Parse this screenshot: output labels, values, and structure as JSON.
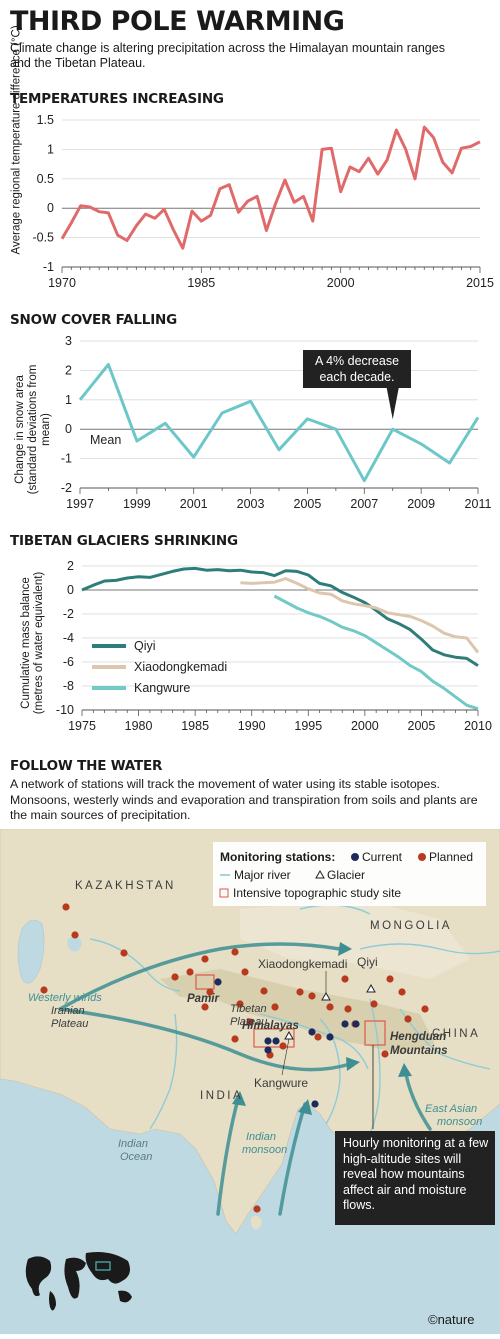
{
  "title": "THIRD POLE WARMING",
  "subtitle": "Climate change is altering precipitation across the Himalayan mountain ranges and the Tibetan Plateau.",
  "chart_data": [
    {
      "type": "line",
      "title": "TEMPERATURES INCREASING",
      "ylabel": "Average regional temperature difference (°C)",
      "ylim": [
        -1,
        1.5
      ],
      "yticks": [
        "1.5",
        "1",
        "0.5",
        "0",
        "-0.5",
        "-1"
      ],
      "xlim": [
        1970,
        2015
      ],
      "xticks": [
        "1970",
        "1985",
        "2000",
        "2015"
      ],
      "series": [
        {
          "color": "#e06a6a",
          "x": [
            1970,
            1971,
            1972,
            1973,
            1974,
            1975,
            1976,
            1977,
            1978,
            1979,
            1980,
            1981,
            1982,
            1983,
            1984,
            1985,
            1986,
            1987,
            1988,
            1989,
            1990,
            1991,
            1992,
            1993,
            1994,
            1995,
            1996,
            1997,
            1998,
            1999,
            2000,
            2001,
            2002,
            2003,
            2004,
            2005,
            2006,
            2007,
            2008,
            2009,
            2010,
            2011,
            2012,
            2013,
            2014,
            2015
          ],
          "values": [
            -0.52,
            -0.25,
            0.04,
            0.02,
            -0.06,
            -0.08,
            -0.46,
            -0.55,
            -0.3,
            -0.1,
            -0.17,
            -0.02,
            -0.37,
            -0.68,
            -0.05,
            -0.22,
            -0.12,
            0.33,
            0.4,
            -0.07,
            0.12,
            0.2,
            -0.38,
            0.08,
            0.48,
            0.1,
            0.2,
            -0.22,
            1.0,
            1.02,
            0.28,
            0.7,
            0.62,
            0.85,
            0.58,
            0.82,
            1.33,
            1.0,
            0.5,
            1.38,
            1.2,
            0.78,
            0.6,
            1.02,
            1.05,
            1.13
          ]
        }
      ]
    },
    {
      "type": "line",
      "title": "SNOW COVER FALLING",
      "ylabel": "Change in snow area (standard deviations from mean)",
      "ylim": [
        -2,
        3
      ],
      "yticks": [
        "3",
        "2",
        "1",
        "0",
        "-1",
        "-2"
      ],
      "xlim": [
        1997,
        2011
      ],
      "xticks": [
        "1997",
        "1999",
        "2001",
        "2003",
        "2005",
        "2007",
        "2009",
        "2011"
      ],
      "mean_label": "Mean",
      "annotation": "A 4% decrease each decade.",
      "series": [
        {
          "color": "#6cc7c9",
          "x": [
            1997,
            1998,
            1999,
            2000,
            2001,
            2002,
            2003,
            2004,
            2005,
            2006,
            2007,
            2008,
            2009,
            2010,
            2011
          ],
          "values": [
            1.0,
            2.2,
            -0.4,
            0.2,
            -0.95,
            0.55,
            0.95,
            -0.7,
            0.35,
            0.0,
            -1.75,
            0.0,
            -0.5,
            -1.15,
            0.4
          ]
        }
      ]
    },
    {
      "type": "line",
      "title": "TIBETAN GLACIERS SHRINKING",
      "ylabel": "Cumulative mass balance (metres of water equivalent)",
      "ylim": [
        -10,
        2
      ],
      "yticks": [
        "2",
        "0",
        "-2",
        "-4",
        "-6",
        "-8",
        "-10"
      ],
      "xlim": [
        1975,
        2010
      ],
      "xticks": [
        "1975",
        "1980",
        "1985",
        "1990",
        "1995",
        "2000",
        "2005",
        "2010"
      ],
      "legend_position": "bottom-left",
      "series": [
        {
          "name": "Qiyi",
          "color": "#2e7d7b",
          "x": [
            1975,
            1976,
            1977,
            1978,
            1979,
            1980,
            1981,
            1982,
            1983,
            1984,
            1985,
            1986,
            1987,
            1988,
            1989,
            1990,
            1991,
            1992,
            1993,
            1994,
            1995,
            1996,
            1997,
            1998,
            1999,
            2000,
            2001,
            2002,
            2003,
            2004,
            2005,
            2006,
            2007,
            2008,
            2009,
            2010
          ],
          "values": [
            0.0,
            0.4,
            0.75,
            0.8,
            1.0,
            1.1,
            1.05,
            1.3,
            1.55,
            1.75,
            1.8,
            1.65,
            1.7,
            1.6,
            1.65,
            1.5,
            1.45,
            1.2,
            1.6,
            1.55,
            1.25,
            0.55,
            0.35,
            -0.2,
            -0.6,
            -1.05,
            -1.7,
            -2.4,
            -2.8,
            -3.3,
            -4.1,
            -5.0,
            -5.4,
            -5.6,
            -5.7,
            -6.3
          ]
        },
        {
          "name": "Xiaodongkemadi",
          "color": "#dcc6ad",
          "x": [
            1989,
            1990,
            1991,
            1992,
            1993,
            1994,
            1995,
            1996,
            1997,
            1998,
            1999,
            2000,
            2001,
            2002,
            2003,
            2004,
            2005,
            2006,
            2007,
            2008,
            2009,
            2010
          ],
          "values": [
            0.6,
            0.55,
            0.6,
            0.65,
            0.95,
            0.55,
            0.1,
            -0.25,
            -0.35,
            -0.9,
            -1.15,
            -1.3,
            -1.5,
            -1.9,
            -2.05,
            -2.2,
            -2.55,
            -3.0,
            -3.6,
            -3.9,
            -4.0,
            -5.2
          ]
        },
        {
          "name": "Kangwure",
          "color": "#72c9c6",
          "x": [
            1992,
            1993,
            1994,
            1995,
            1996,
            1997,
            1998,
            1999,
            2000,
            2001,
            2002,
            2003,
            2004,
            2005,
            2006,
            2007,
            2008,
            2009,
            2010
          ],
          "values": [
            -0.5,
            -1.0,
            -1.5,
            -1.9,
            -2.2,
            -2.6,
            -3.1,
            -3.4,
            -3.8,
            -4.4,
            -5.0,
            -5.6,
            -6.3,
            -6.8,
            -7.6,
            -8.2,
            -8.9,
            -9.6,
            -9.9
          ]
        }
      ]
    }
  ],
  "follow": {
    "title": "FOLLOW THE WATER",
    "text": "A network of stations will track the movement of water using its stable isotopes. Monsoons, westerly winds and evaporation and transpiration from soils and plants are the main sources of precipitation."
  },
  "map": {
    "legend": {
      "title": "Monitoring stations:",
      "current": "Current",
      "planned": "Planned",
      "river": "Major river",
      "glacier": "Glacier",
      "study_site": "Intensive topographic study site"
    },
    "labels": {
      "kazakhstan": "KAZAKHSTAN",
      "mongolia": "MONGOLIA",
      "china": "CHINA",
      "india": "INDIA",
      "iranian_plateau": "Iranian\nPlateau",
      "westerly": "Westerly winds",
      "pamir": "Pamir",
      "tibetan_plateau": "Tibetan\nPlateau",
      "himalayas": "Himalayas",
      "hengduan": "Hengduan\nMountains",
      "qiyi": "Qiyi",
      "xiaodongkemadi": "Xiaodongkemadi",
      "kangwure": "Kangwure",
      "indian_ocean": "Indian\nOcean",
      "indian_monsoon": "Indian\nmonsoon",
      "east_asian_monsoon": "East Asian\nmonsoon"
    },
    "callout": "Hourly monitoring at a few high-altitude sites will reveal how mountains affect air and moisture flows.",
    "credit": "©nature",
    "colors": {
      "current": "#1c2a5c",
      "planned": "#b83a1e",
      "river": "#8ecbd6",
      "sea": "#bfd9e2",
      "land": "#e8e1c9",
      "arrow": "#3e8f93"
    }
  }
}
